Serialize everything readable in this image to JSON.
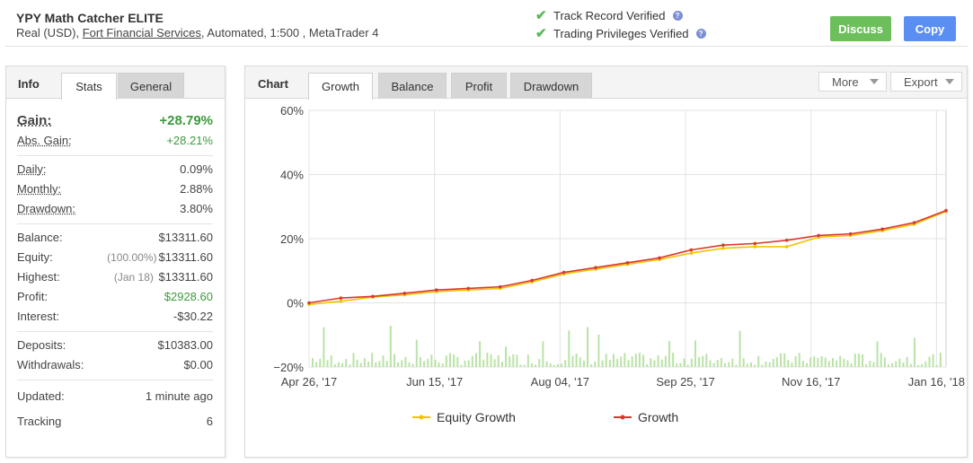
{
  "header": {
    "title": "YPY Math Catcher ELITE",
    "sub_prefix": "Real (USD),",
    "broker": "Fort Financial Services",
    "sub_suffix": ", Automated, 1:500 , MetaTrader 4",
    "verify1": "Track Record Verified",
    "verify2": "Trading Privileges Verified",
    "discuss_label": "Discuss",
    "copy_label": "Copy"
  },
  "info": {
    "title": "Info",
    "tabs": [
      "Stats",
      "General"
    ],
    "gain_label": "Gain:",
    "gain_value": "+28.79%",
    "abs_gain_label": "Abs. Gain:",
    "abs_gain_value": "+28.21%",
    "daily_label": "Daily:",
    "daily_value": "0.09%",
    "monthly_label": "Monthly:",
    "monthly_value": "2.88%",
    "drawdown_label": "Drawdown:",
    "drawdown_value": "3.80%",
    "balance_label": "Balance:",
    "balance_value": "$13311.60",
    "equity_label": "Equity:",
    "equity_pct": "(100.00%)",
    "equity_value": "$13311.60",
    "highest_label": "Highest:",
    "highest_date": "(Jan 18)",
    "highest_value": "$13311.60",
    "profit_label": "Profit:",
    "profit_value": "$2928.60",
    "interest_label": "Interest:",
    "interest_value": "-$30.22",
    "deposits_label": "Deposits:",
    "deposits_value": "$10383.00",
    "withdrawals_label": "Withdrawals:",
    "withdrawals_value": "$0.00",
    "updated_label": "Updated:",
    "updated_value": "1 minute ago",
    "tracking_label": "Tracking",
    "tracking_value": "6"
  },
  "chart_panel": {
    "title": "Chart",
    "tabs": [
      "Growth",
      "Balance",
      "Profit",
      "Drawdown"
    ],
    "more_label": "More",
    "export_label": "Export"
  },
  "colors": {
    "growth": "#d9382f",
    "equity": "#f2c400",
    "bars": "#b9e3a6",
    "accent_green": "#6cbf5b",
    "accent_blue": "#5b8ef2"
  },
  "chart_data": {
    "type": "line",
    "x_ticks": [
      "Apr 26, '17",
      "Jun 15, '17",
      "Aug 04, '17",
      "Sep 25, '17",
      "Nov 16, '17",
      "Jan 16, '18"
    ],
    "y_ticks": [
      "60%",
      "40%",
      "20%",
      "0%",
      "−20%"
    ],
    "ylim": [
      -20,
      60
    ],
    "grid": true,
    "legend_position": "bottom",
    "series": [
      {
        "name": "Growth",
        "color": "#d9382f",
        "x": [
          0,
          5,
          10,
          15,
          20,
          25,
          30,
          35,
          40,
          45,
          50,
          55,
          60,
          65,
          70,
          75,
          80,
          85,
          90,
          95,
          100
        ],
        "y": [
          0.0,
          1.5,
          2.0,
          3.0,
          4.0,
          4.5,
          5.0,
          7.0,
          9.5,
          11.0,
          12.5,
          14.0,
          16.5,
          18.0,
          18.5,
          19.5,
          21.0,
          21.5,
          23.0,
          25.0,
          28.79
        ]
      },
      {
        "name": "Equity Growth",
        "color": "#f2c400",
        "x": [
          0,
          5,
          10,
          15,
          20,
          25,
          30,
          35,
          40,
          45,
          50,
          55,
          60,
          65,
          70,
          75,
          80,
          85,
          90,
          95,
          100
        ],
        "y": [
          -0.5,
          0.5,
          1.8,
          2.5,
          3.5,
          4.0,
          4.5,
          6.5,
          9.0,
          10.5,
          12.0,
          13.5,
          15.5,
          17.0,
          17.5,
          17.5,
          20.5,
          21.0,
          22.5,
          24.5,
          28.5
        ]
      }
    ]
  }
}
